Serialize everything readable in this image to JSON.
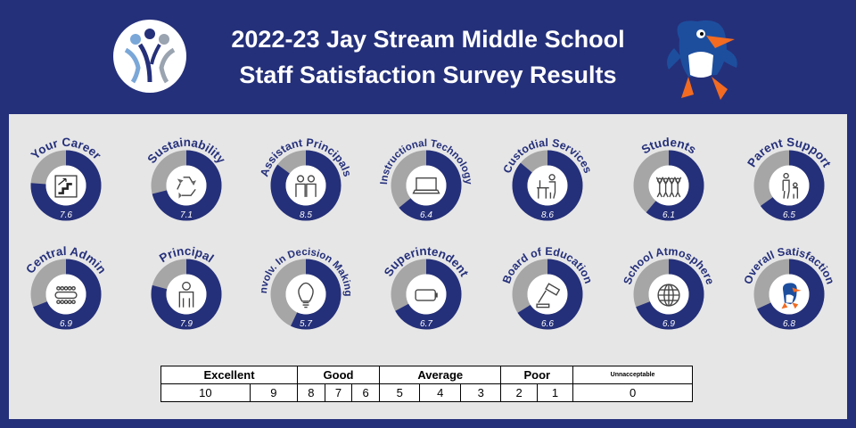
{
  "header": {
    "title_line1": "2022-23 Jay Stream Middle School",
    "title_line2": "Staff Satisfaction Survey Results"
  },
  "colors": {
    "navy": "#25307a",
    "gray": "#a6a6a6",
    "panel": "#e6e6e7",
    "mascot_orange": "#f26b21"
  },
  "chart_data": {
    "type": "donut",
    "max": 10,
    "items": [
      {
        "label": "Your Career",
        "value": 7.6,
        "icon": "stairs-icon"
      },
      {
        "label": "Sustainability",
        "value": 7.1,
        "icon": "recycle-icon"
      },
      {
        "label": "Assistant Principals",
        "value": 8.5,
        "icon": "people-icon"
      },
      {
        "label": "Instructional Technology",
        "value": 6.4,
        "icon": "laptop-icon"
      },
      {
        "label": "Custodial Services",
        "value": 8.6,
        "icon": "janitor-icon"
      },
      {
        "label": "Students",
        "value": 6.1,
        "icon": "students-icon"
      },
      {
        "label": "Parent Support",
        "value": 6.5,
        "icon": "parent-child-icon"
      },
      {
        "label": "Central Admin",
        "value": 6.9,
        "icon": "meeting-table-icon"
      },
      {
        "label": "Principal",
        "value": 7.9,
        "icon": "person-icon"
      },
      {
        "label": "Involv. In Decision Making",
        "value": 5.7,
        "icon": "lightbulb-icon"
      },
      {
        "label": "Superintendent",
        "value": 6.7,
        "icon": "battery-icon"
      },
      {
        "label": "Board of Education",
        "value": 6.6,
        "icon": "gavel-icon"
      },
      {
        "label": "School Atmosphere",
        "value": 6.9,
        "icon": "globe-icon"
      },
      {
        "label": "Overall Satisfaction",
        "value": 6.8,
        "icon": "mascot-icon"
      }
    ]
  },
  "legend": {
    "categories": [
      "Excellent",
      "Good",
      "Average",
      "Poor",
      "Unnacceptable"
    ],
    "scores": [
      "10",
      "9",
      "8",
      "7",
      "6",
      "5",
      "4",
      "3",
      "2",
      "1",
      "0"
    ]
  }
}
